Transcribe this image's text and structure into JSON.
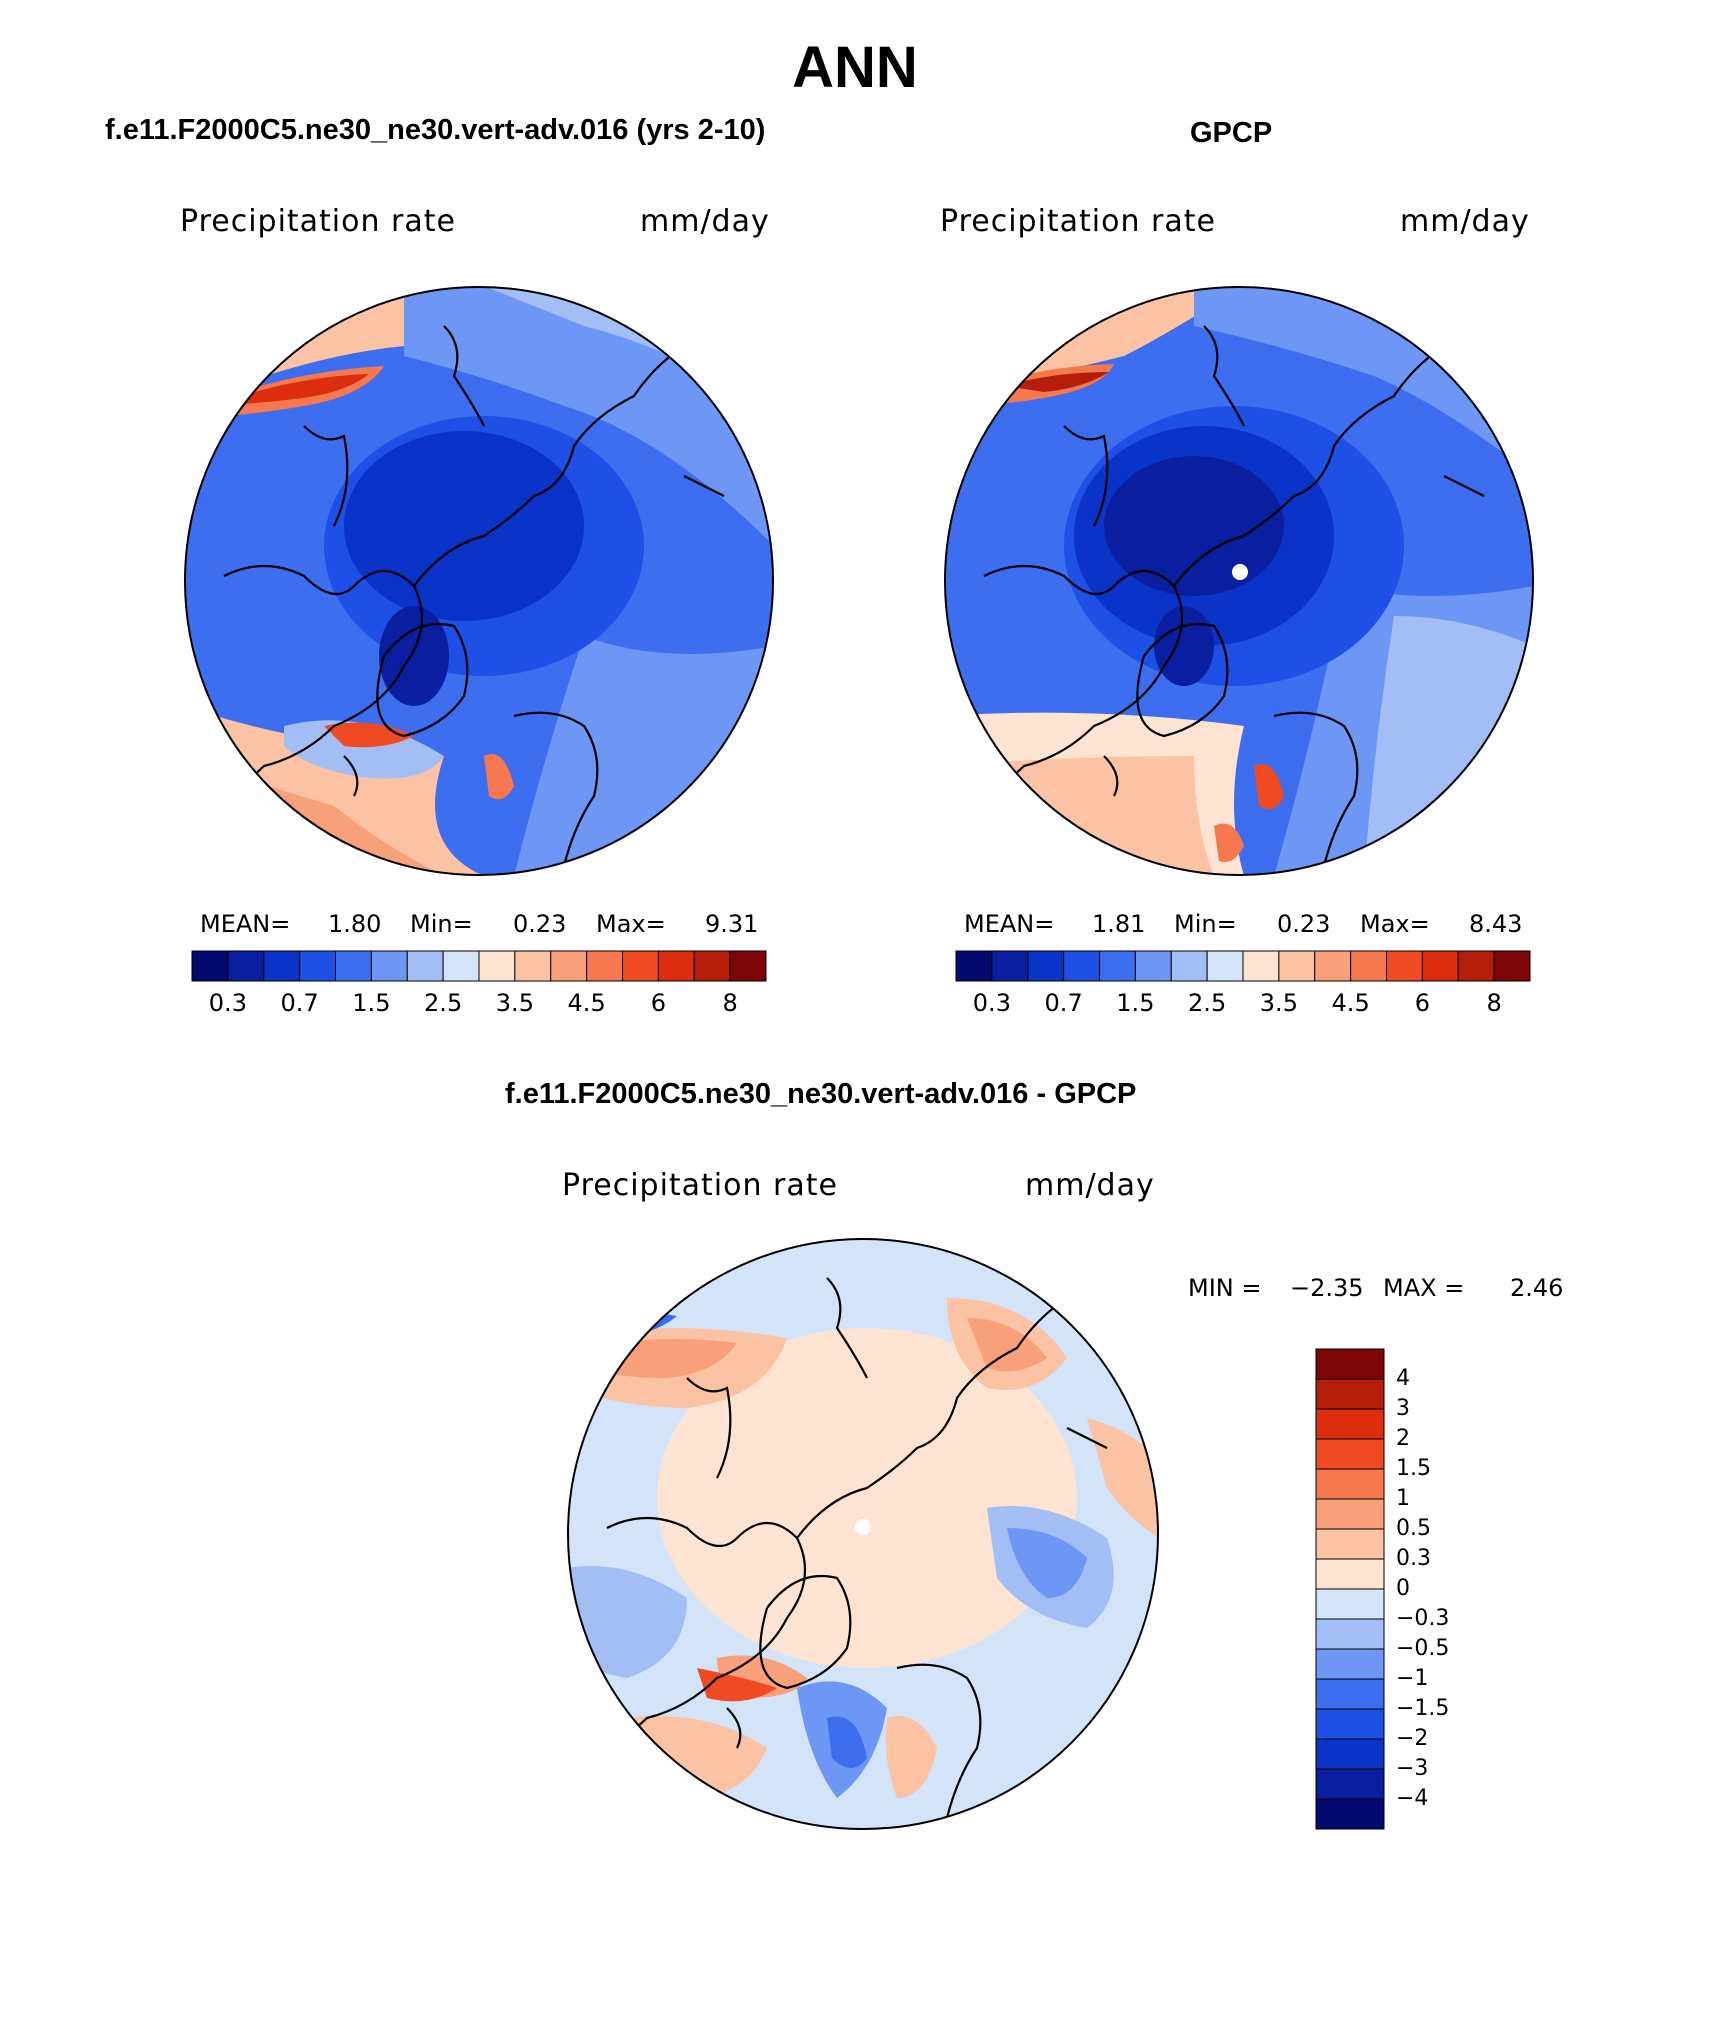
{
  "figure_title": "ANN",
  "panels": [
    {
      "title": "f.e11.F2000C5.ne30_ne30.vert-adv.016 (yrs 2-10)",
      "variable": "Precipitation rate",
      "units": "mm/day",
      "stats": {
        "mean_label": "MEAN=",
        "mean": "1.80",
        "min_label": "Min=",
        "min": "0.23",
        "max_label": "Max=",
        "max": "9.31"
      }
    },
    {
      "title": "GPCP",
      "variable": "Precipitation rate",
      "units": "mm/day",
      "stats": {
        "mean_label": "MEAN=",
        "mean": "1.81",
        "min_label": "Min=",
        "min": "0.23",
        "max_label": "Max=",
        "max": "8.43"
      }
    },
    {
      "title": "f.e11.F2000C5.ne30_ne30.vert-adv.016 - GPCP",
      "variable": "Precipitation rate",
      "units": "mm/day",
      "stats": {
        "min_label": "MIN =",
        "min": "−2.35",
        "max_label": "MAX =",
        "max": "2.46"
      }
    }
  ],
  "abs_colorbar": {
    "colors": [
      "#050a70",
      "#0a1ea0",
      "#0a33c8",
      "#1e50e6",
      "#3d6ef0",
      "#6e96f5",
      "#a3bdf5",
      "#d3e3f8",
      "#fde4d2",
      "#fbc2a3",
      "#f8a07a",
      "#f5784f",
      "#f04a23",
      "#dc2d0f",
      "#b41e0a",
      "#7d0505"
    ],
    "labels": [
      "0.3",
      "0.7",
      "1.5",
      "2.5",
      "3.5",
      "4.5",
      "6",
      "8"
    ]
  },
  "diff_colorbar": {
    "colors": [
      "#7d0505",
      "#b41e0a",
      "#dc2d0f",
      "#f04a23",
      "#f5784f",
      "#f8a07a",
      "#fbc2a3",
      "#fde4d2",
      "#d3e3f8",
      "#a3bdf5",
      "#6e96f5",
      "#3d6ef0",
      "#1e50e6",
      "#0a33c8",
      "#0a1ea0",
      "#050a70"
    ],
    "labels": [
      "4",
      "3",
      "2",
      "1.5",
      "1",
      "0.5",
      "0.3",
      "0",
      "−0.3",
      "−0.5",
      "−1",
      "−1.5",
      "−2",
      "−3",
      "−4"
    ]
  }
}
